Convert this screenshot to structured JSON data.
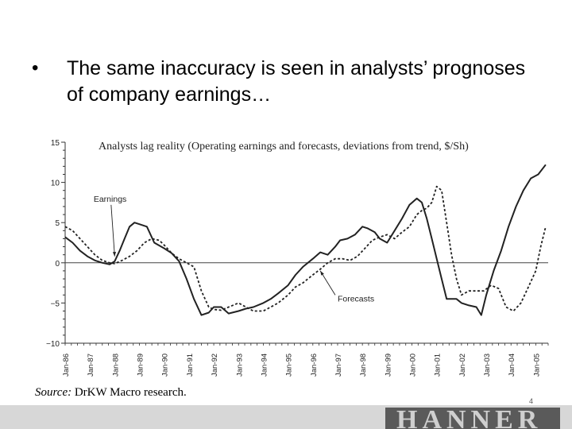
{
  "slide": {
    "bullet_char": "•",
    "bullet_text": "The same inaccuracy is seen in analysts’ prognoses of company earnings…",
    "source_label": "Source:",
    "source_text": "DrKW Macro research.",
    "page_number": "4",
    "logo_text": "HANNER"
  },
  "chart_data": {
    "type": "line",
    "title": "Analysts lag reality (Operating earnings and forecasts, deviations from trend, $/Sh)",
    "xlabel": "",
    "ylabel": "",
    "ylim": [
      -10,
      15
    ],
    "yticks": [
      15,
      10,
      5,
      0,
      -5,
      -10
    ],
    "ytick_labels": [
      "15",
      "10",
      "5",
      "0",
      "−5",
      "−10"
    ],
    "xlim": [
      1986.0,
      2005.5
    ],
    "xticks": [
      1986,
      1987,
      1988,
      1989,
      1990,
      1991,
      1992,
      1993,
      1994,
      1995,
      1996,
      1997,
      1998,
      1999,
      2000,
      2001,
      2002,
      2003,
      2004,
      2005
    ],
    "xtick_labels": [
      "Jan-86",
      "Jan-87",
      "Jan-88",
      "Jan-89",
      "Jan-90",
      "Jan-91",
      "Jan-92",
      "Jan-93",
      "Jan-94",
      "Jan-95",
      "Jan-96",
      "Jan-97",
      "Jan-98",
      "Jan-99",
      "Jan-00",
      "Jan-01",
      "Jan-02",
      "Jan-03",
      "Jan-04",
      "Jan-05"
    ],
    "zero_line": true,
    "grid": false,
    "annotations": [
      {
        "text": "Earnings",
        "x": 1987.15,
        "y": 7.6,
        "arrow_to": [
          1988.0,
          0.8
        ]
      },
      {
        "text": "Forecasts",
        "x": 1997.0,
        "y": -4.8,
        "arrow_to": [
          1996.3,
          -1.0
        ]
      }
    ],
    "series": [
      {
        "name": "Earnings",
        "style": "solid",
        "x": [
          1986.0,
          1986.3,
          1986.6,
          1986.9,
          1987.2,
          1987.5,
          1987.8,
          1988.0,
          1988.2,
          1988.4,
          1988.6,
          1988.8,
          1989.0,
          1989.3,
          1989.6,
          1990.0,
          1990.3,
          1990.6,
          1990.9,
          1991.2,
          1991.5,
          1991.8,
          1992.0,
          1992.3,
          1992.6,
          1993.0,
          1993.3,
          1993.6,
          1994.0,
          1994.3,
          1994.6,
          1995.0,
          1995.3,
          1995.6,
          1996.0,
          1996.3,
          1996.6,
          1996.9,
          1997.1,
          1997.4,
          1997.7,
          1998.0,
          1998.2,
          1998.5,
          1998.7,
          1999.0,
          1999.3,
          1999.6,
          1999.9,
          2000.2,
          2000.4,
          2000.6,
          2000.8,
          2001.0,
          2001.2,
          2001.4,
          2001.6,
          2001.8,
          2002.0,
          2002.3,
          2002.6,
          2002.8,
          2003.0,
          2003.3,
          2003.6,
          2003.9,
          2004.2,
          2004.5,
          2004.8,
          2005.1,
          2005.4
        ],
        "y": [
          3.2,
          2.5,
          1.5,
          0.8,
          0.3,
          0.0,
          -0.2,
          0.2,
          1.5,
          3.0,
          4.5,
          5.0,
          4.8,
          4.5,
          2.5,
          1.8,
          1.2,
          0.2,
          -2.0,
          -4.5,
          -6.5,
          -6.2,
          -5.5,
          -5.5,
          -6.3,
          -6.0,
          -5.7,
          -5.5,
          -5.0,
          -4.5,
          -3.8,
          -2.8,
          -1.5,
          -0.5,
          0.5,
          1.3,
          1.0,
          2.0,
          2.8,
          3.0,
          3.5,
          4.5,
          4.3,
          3.8,
          3.0,
          2.5,
          4.0,
          5.5,
          7.2,
          8.0,
          7.5,
          5.5,
          3.0,
          0.5,
          -2.0,
          -4.5,
          -4.5,
          -4.5,
          -5.0,
          -5.3,
          -5.5,
          -6.5,
          -4.0,
          -1.0,
          1.5,
          4.5,
          7.0,
          9.0,
          10.5,
          11.0,
          12.2
        ]
      },
      {
        "name": "Forecasts",
        "style": "dashed",
        "x": [
          1986.0,
          1986.3,
          1986.6,
          1986.9,
          1987.2,
          1987.5,
          1987.8,
          1988.0,
          1988.3,
          1988.6,
          1988.9,
          1989.2,
          1989.5,
          1989.8,
          1990.0,
          1990.3,
          1990.6,
          1990.9,
          1991.2,
          1991.5,
          1991.8,
          1992.0,
          1992.3,
          1992.6,
          1993.0,
          1993.3,
          1993.6,
          1994.0,
          1994.3,
          1994.6,
          1995.0,
          1995.3,
          1995.6,
          1996.0,
          1996.3,
          1996.6,
          1996.9,
          1997.2,
          1997.5,
          1997.8,
          1998.1,
          1998.4,
          1998.7,
          1999.0,
          1999.3,
          1999.6,
          1999.9,
          2000.2,
          2000.4,
          2000.6,
          2000.8,
          2001.0,
          2001.2,
          2001.4,
          2001.6,
          2001.8,
          2002.0,
          2002.3,
          2002.6,
          2002.9,
          2003.2,
          2003.5,
          2003.8,
          2004.1,
          2004.4,
          2004.7,
          2005.0,
          2005.2,
          2005.4
        ],
        "y": [
          4.5,
          4.0,
          3.0,
          2.0,
          1.0,
          0.3,
          0.0,
          -0.1,
          0.3,
          0.8,
          1.5,
          2.5,
          3.0,
          2.8,
          2.2,
          1.2,
          0.5,
          0.0,
          -0.5,
          -3.5,
          -5.5,
          -5.8,
          -5.9,
          -5.5,
          -5.0,
          -5.5,
          -6.0,
          -6.0,
          -5.5,
          -5.0,
          -4.0,
          -3.0,
          -2.5,
          -1.5,
          -0.8,
          0.0,
          0.5,
          0.5,
          0.3,
          0.8,
          1.8,
          2.8,
          3.2,
          3.5,
          3.0,
          3.8,
          4.5,
          6.0,
          6.5,
          6.8,
          7.5,
          9.5,
          9.0,
          5.0,
          1.0,
          -2.0,
          -4.0,
          -3.5,
          -3.5,
          -3.5,
          -2.8,
          -3.2,
          -5.5,
          -6.0,
          -5.0,
          -3.0,
          -1.0,
          2.0,
          4.5
        ]
      }
    ]
  }
}
